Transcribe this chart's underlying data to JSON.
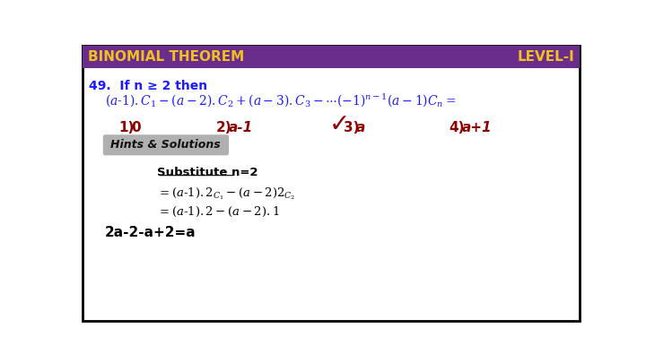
{
  "bg_color": "#ffffff",
  "border_color": "#000000",
  "header_bg": "#6b2d8b",
  "header_text_color": "#f0c020",
  "header_left": "BINOMIAL THEOREM",
  "header_right": "LEVEL-I",
  "q_color": "#1a1aff",
  "opt_color": "#8b0000",
  "check_color": "#8b0000",
  "hints_bg": "#b0b0b0",
  "hints_text": "Hints & Solutions",
  "sol_color": "#000000",
  "header_fontsize": 11,
  "q_fontsize": 10,
  "math_fontsize": 10,
  "opt_fontsize": 11,
  "sol_fontsize": 9.5
}
